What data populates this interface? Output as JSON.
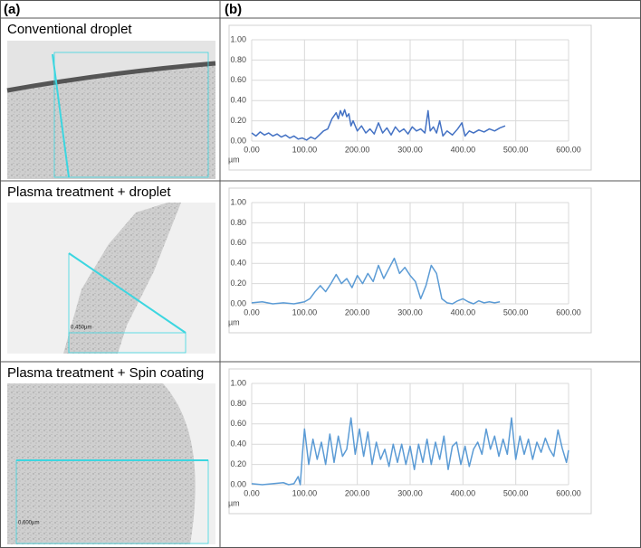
{
  "header": {
    "a": "(a)",
    "b": "(b)"
  },
  "rows": [
    {
      "label": "Conventional droplet"
    },
    {
      "label": "Plasma treatment + droplet",
      "scale": "0,450µm"
    },
    {
      "label": "Plasma treatment + Spin coating",
      "scale": "0,600µm"
    }
  ],
  "chart_data": [
    {
      "type": "line",
      "xlabel": "µm",
      "grid": true,
      "xlim": [
        0,
        600
      ],
      "ylim": [
        0,
        1
      ],
      "xticks": [
        {
          "value": 0,
          "label": "0.00"
        },
        {
          "value": 100,
          "label": "100.00"
        },
        {
          "value": 200,
          "label": "200.00"
        },
        {
          "value": 300,
          "label": "300.00"
        },
        {
          "value": 400,
          "label": "400.00"
        },
        {
          "value": 500,
          "label": "500.00"
        },
        {
          "value": 600,
          "label": "600.00"
        }
      ],
      "yticks": [
        {
          "value": 0,
          "label": "0.00"
        },
        {
          "value": 0.2,
          "label": "0.20"
        },
        {
          "value": 0.4,
          "label": "0.40"
        },
        {
          "value": 0.6,
          "label": "0.60"
        },
        {
          "value": 0.8,
          "label": "0.80"
        },
        {
          "value": 1,
          "label": "1.00"
        }
      ],
      "series": [
        {
          "color": "#4472c4",
          "x": [
            0,
            8,
            16,
            24,
            32,
            40,
            48,
            56,
            64,
            72,
            80,
            88,
            96,
            104,
            112,
            120,
            128,
            136,
            144,
            152,
            160,
            164,
            168,
            172,
            176,
            180,
            184,
            188,
            192,
            200,
            208,
            216,
            224,
            232,
            240,
            248,
            256,
            264,
            272,
            280,
            288,
            296,
            304,
            312,
            320,
            328,
            334,
            338,
            344,
            350,
            356,
            362,
            370,
            380,
            390,
            398,
            404,
            412,
            420,
            430,
            440,
            450,
            460,
            470,
            480
          ],
          "values": [
            0.08,
            0.05,
            0.09,
            0.06,
            0.08,
            0.05,
            0.07,
            0.04,
            0.06,
            0.03,
            0.05,
            0.02,
            0.03,
            0.01,
            0.04,
            0.02,
            0.06,
            0.1,
            0.12,
            0.22,
            0.28,
            0.22,
            0.3,
            0.25,
            0.31,
            0.24,
            0.27,
            0.15,
            0.2,
            0.1,
            0.15,
            0.08,
            0.12,
            0.07,
            0.18,
            0.08,
            0.13,
            0.06,
            0.14,
            0.09,
            0.12,
            0.07,
            0.14,
            0.1,
            0.12,
            0.08,
            0.3,
            0.1,
            0.14,
            0.08,
            0.2,
            0.05,
            0.1,
            0.06,
            0.12,
            0.18,
            0.05,
            0.1,
            0.08,
            0.11,
            0.09,
            0.12,
            0.1,
            0.13,
            0.15
          ]
        }
      ]
    },
    {
      "type": "line",
      "xlabel": "µm",
      "grid": true,
      "xlim": [
        0,
        600
      ],
      "ylim": [
        0,
        1
      ],
      "xticks": [
        {
          "value": 0,
          "label": "0.00"
        },
        {
          "value": 100,
          "label": "100.00"
        },
        {
          "value": 200,
          "label": "200.00"
        },
        {
          "value": 300,
          "label": "300.00"
        },
        {
          "value": 400,
          "label": "400.00"
        },
        {
          "value": 500,
          "label": "500.00"
        },
        {
          "value": 600,
          "label": "600.00"
        }
      ],
      "yticks": [
        {
          "value": 0,
          "label": "0.00"
        },
        {
          "value": 0.2,
          "label": "0.20"
        },
        {
          "value": 0.4,
          "label": "0.40"
        },
        {
          "value": 0.6,
          "label": "0.60"
        },
        {
          "value": 0.8,
          "label": "0.80"
        },
        {
          "value": 1,
          "label": "1.00"
        }
      ],
      "series": [
        {
          "color": "#5b9bd5",
          "x": [
            0,
            20,
            40,
            60,
            80,
            100,
            110,
            120,
            130,
            140,
            150,
            160,
            170,
            180,
            190,
            200,
            210,
            220,
            230,
            240,
            250,
            260,
            270,
            280,
            290,
            300,
            310,
            320,
            330,
            340,
            350,
            360,
            370,
            380,
            390,
            400,
            410,
            420,
            430,
            440,
            450,
            460,
            470
          ],
          "values": [
            0.01,
            0.02,
            0,
            0.01,
            0,
            0.02,
            0.05,
            0.12,
            0.18,
            0.12,
            0.2,
            0.29,
            0.2,
            0.25,
            0.16,
            0.28,
            0.2,
            0.3,
            0.22,
            0.38,
            0.25,
            0.35,
            0.45,
            0.3,
            0.36,
            0.28,
            0.22,
            0.05,
            0.18,
            0.38,
            0.3,
            0.05,
            0.01,
            0,
            0.03,
            0.05,
            0.02,
            0,
            0.03,
            0.01,
            0.02,
            0.01,
            0.02
          ]
        }
      ]
    },
    {
      "type": "line",
      "xlabel": "µm",
      "grid": true,
      "xlim": [
        0,
        600
      ],
      "ylim": [
        0,
        1
      ],
      "xticks": [
        {
          "value": 0,
          "label": "0.00"
        },
        {
          "value": 100,
          "label": "100.00"
        },
        {
          "value": 200,
          "label": "200.00"
        },
        {
          "value": 300,
          "label": "300.00"
        },
        {
          "value": 400,
          "label": "400.00"
        },
        {
          "value": 500,
          "label": "500.00"
        },
        {
          "value": 600,
          "label": "600.00"
        }
      ],
      "yticks": [
        {
          "value": 0,
          "label": "0.00"
        },
        {
          "value": 0.2,
          "label": "0.20"
        },
        {
          "value": 0.4,
          "label": "0.40"
        },
        {
          "value": 0.6,
          "label": "0.60"
        },
        {
          "value": 0.8,
          "label": "0.80"
        },
        {
          "value": 1,
          "label": "1.00"
        }
      ],
      "series": [
        {
          "color": "#5b9bd5",
          "x": [
            0,
            20,
            40,
            60,
            70,
            80,
            88,
            92,
            96,
            100,
            108,
            116,
            124,
            132,
            140,
            148,
            156,
            164,
            172,
            180,
            188,
            196,
            204,
            212,
            220,
            228,
            236,
            244,
            252,
            260,
            268,
            276,
            284,
            292,
            300,
            308,
            316,
            324,
            332,
            340,
            348,
            356,
            364,
            372,
            380,
            388,
            396,
            404,
            412,
            420,
            428,
            436,
            444,
            452,
            460,
            468,
            476,
            484,
            492,
            500,
            508,
            516,
            524,
            532,
            540,
            548,
            556,
            564,
            572,
            580,
            588,
            596,
            600
          ],
          "values": [
            0.01,
            0,
            0.01,
            0.02,
            0,
            0.01,
            0.08,
            0,
            0.3,
            0.55,
            0.2,
            0.45,
            0.25,
            0.42,
            0.2,
            0.5,
            0.22,
            0.48,
            0.28,
            0.35,
            0.66,
            0.3,
            0.55,
            0.28,
            0.52,
            0.2,
            0.42,
            0.25,
            0.35,
            0.18,
            0.4,
            0.22,
            0.4,
            0.2,
            0.38,
            0.15,
            0.4,
            0.22,
            0.45,
            0.2,
            0.42,
            0.25,
            0.48,
            0.15,
            0.38,
            0.42,
            0.2,
            0.38,
            0.18,
            0.35,
            0.42,
            0.3,
            0.55,
            0.35,
            0.48,
            0.28,
            0.45,
            0.3,
            0.66,
            0.25,
            0.48,
            0.3,
            0.45,
            0.25,
            0.42,
            0.32,
            0.46,
            0.35,
            0.28,
            0.54,
            0.36,
            0.22,
            0.34
          ]
        }
      ]
    }
  ]
}
